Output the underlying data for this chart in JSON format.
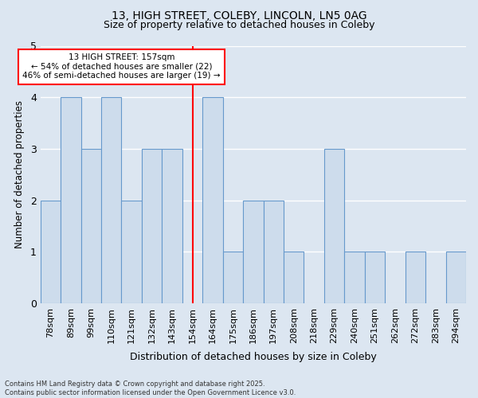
{
  "title1": "13, HIGH STREET, COLEBY, LINCOLN, LN5 0AG",
  "title2": "Size of property relative to detached houses in Coleby",
  "xlabel": "Distribution of detached houses by size in Coleby",
  "ylabel": "Number of detached properties",
  "bins": [
    "78sqm",
    "89sqm",
    "99sqm",
    "110sqm",
    "121sqm",
    "132sqm",
    "143sqm",
    "154sqm",
    "164sqm",
    "175sqm",
    "186sqm",
    "197sqm",
    "208sqm",
    "218sqm",
    "229sqm",
    "240sqm",
    "251sqm",
    "262sqm",
    "272sqm",
    "283sqm",
    "294sqm"
  ],
  "heights": [
    2,
    4,
    3,
    4,
    2,
    3,
    3,
    0,
    4,
    1,
    2,
    2,
    1,
    0,
    3,
    1,
    1,
    0,
    1,
    0,
    1
  ],
  "bar_color": "#cddcec",
  "bar_edge_color": "#6699cc",
  "vline_color": "red",
  "annotation_text": "13 HIGH STREET: 157sqm\n← 54% of detached houses are smaller (22)\n46% of semi-detached houses are larger (19) →",
  "annotation_box_color": "white",
  "annotation_box_edge_color": "red",
  "ylim": [
    0,
    5
  ],
  "yticks": [
    0,
    1,
    2,
    3,
    4,
    5
  ],
  "background_color": "#dce6f1",
  "grid_color": "#b0c4de",
  "footer1": "Contains HM Land Registry data © Crown copyright and database right 2025.",
  "footer2": "Contains public sector information licensed under the Open Government Licence v3.0."
}
